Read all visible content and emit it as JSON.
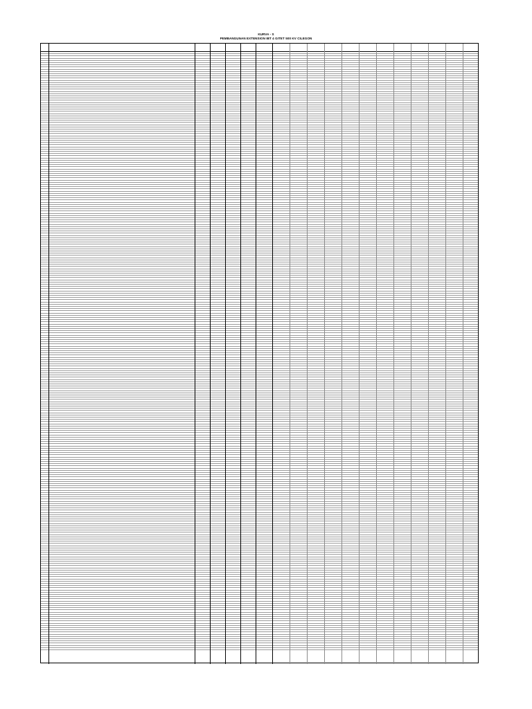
{
  "document": {
    "title": "KURVA - S",
    "subtitle": "PEMBANGUNAN EXTENSION IBT 4 GITET 500 KV CILEGON"
  },
  "table": {
    "header_labels": [],
    "rows": [],
    "footer_rows": []
  },
  "chart_data": {
    "type": "line",
    "title": "",
    "x": [],
    "series": [],
    "colors": {
      "curve": "#1f6fc5"
    }
  }
}
